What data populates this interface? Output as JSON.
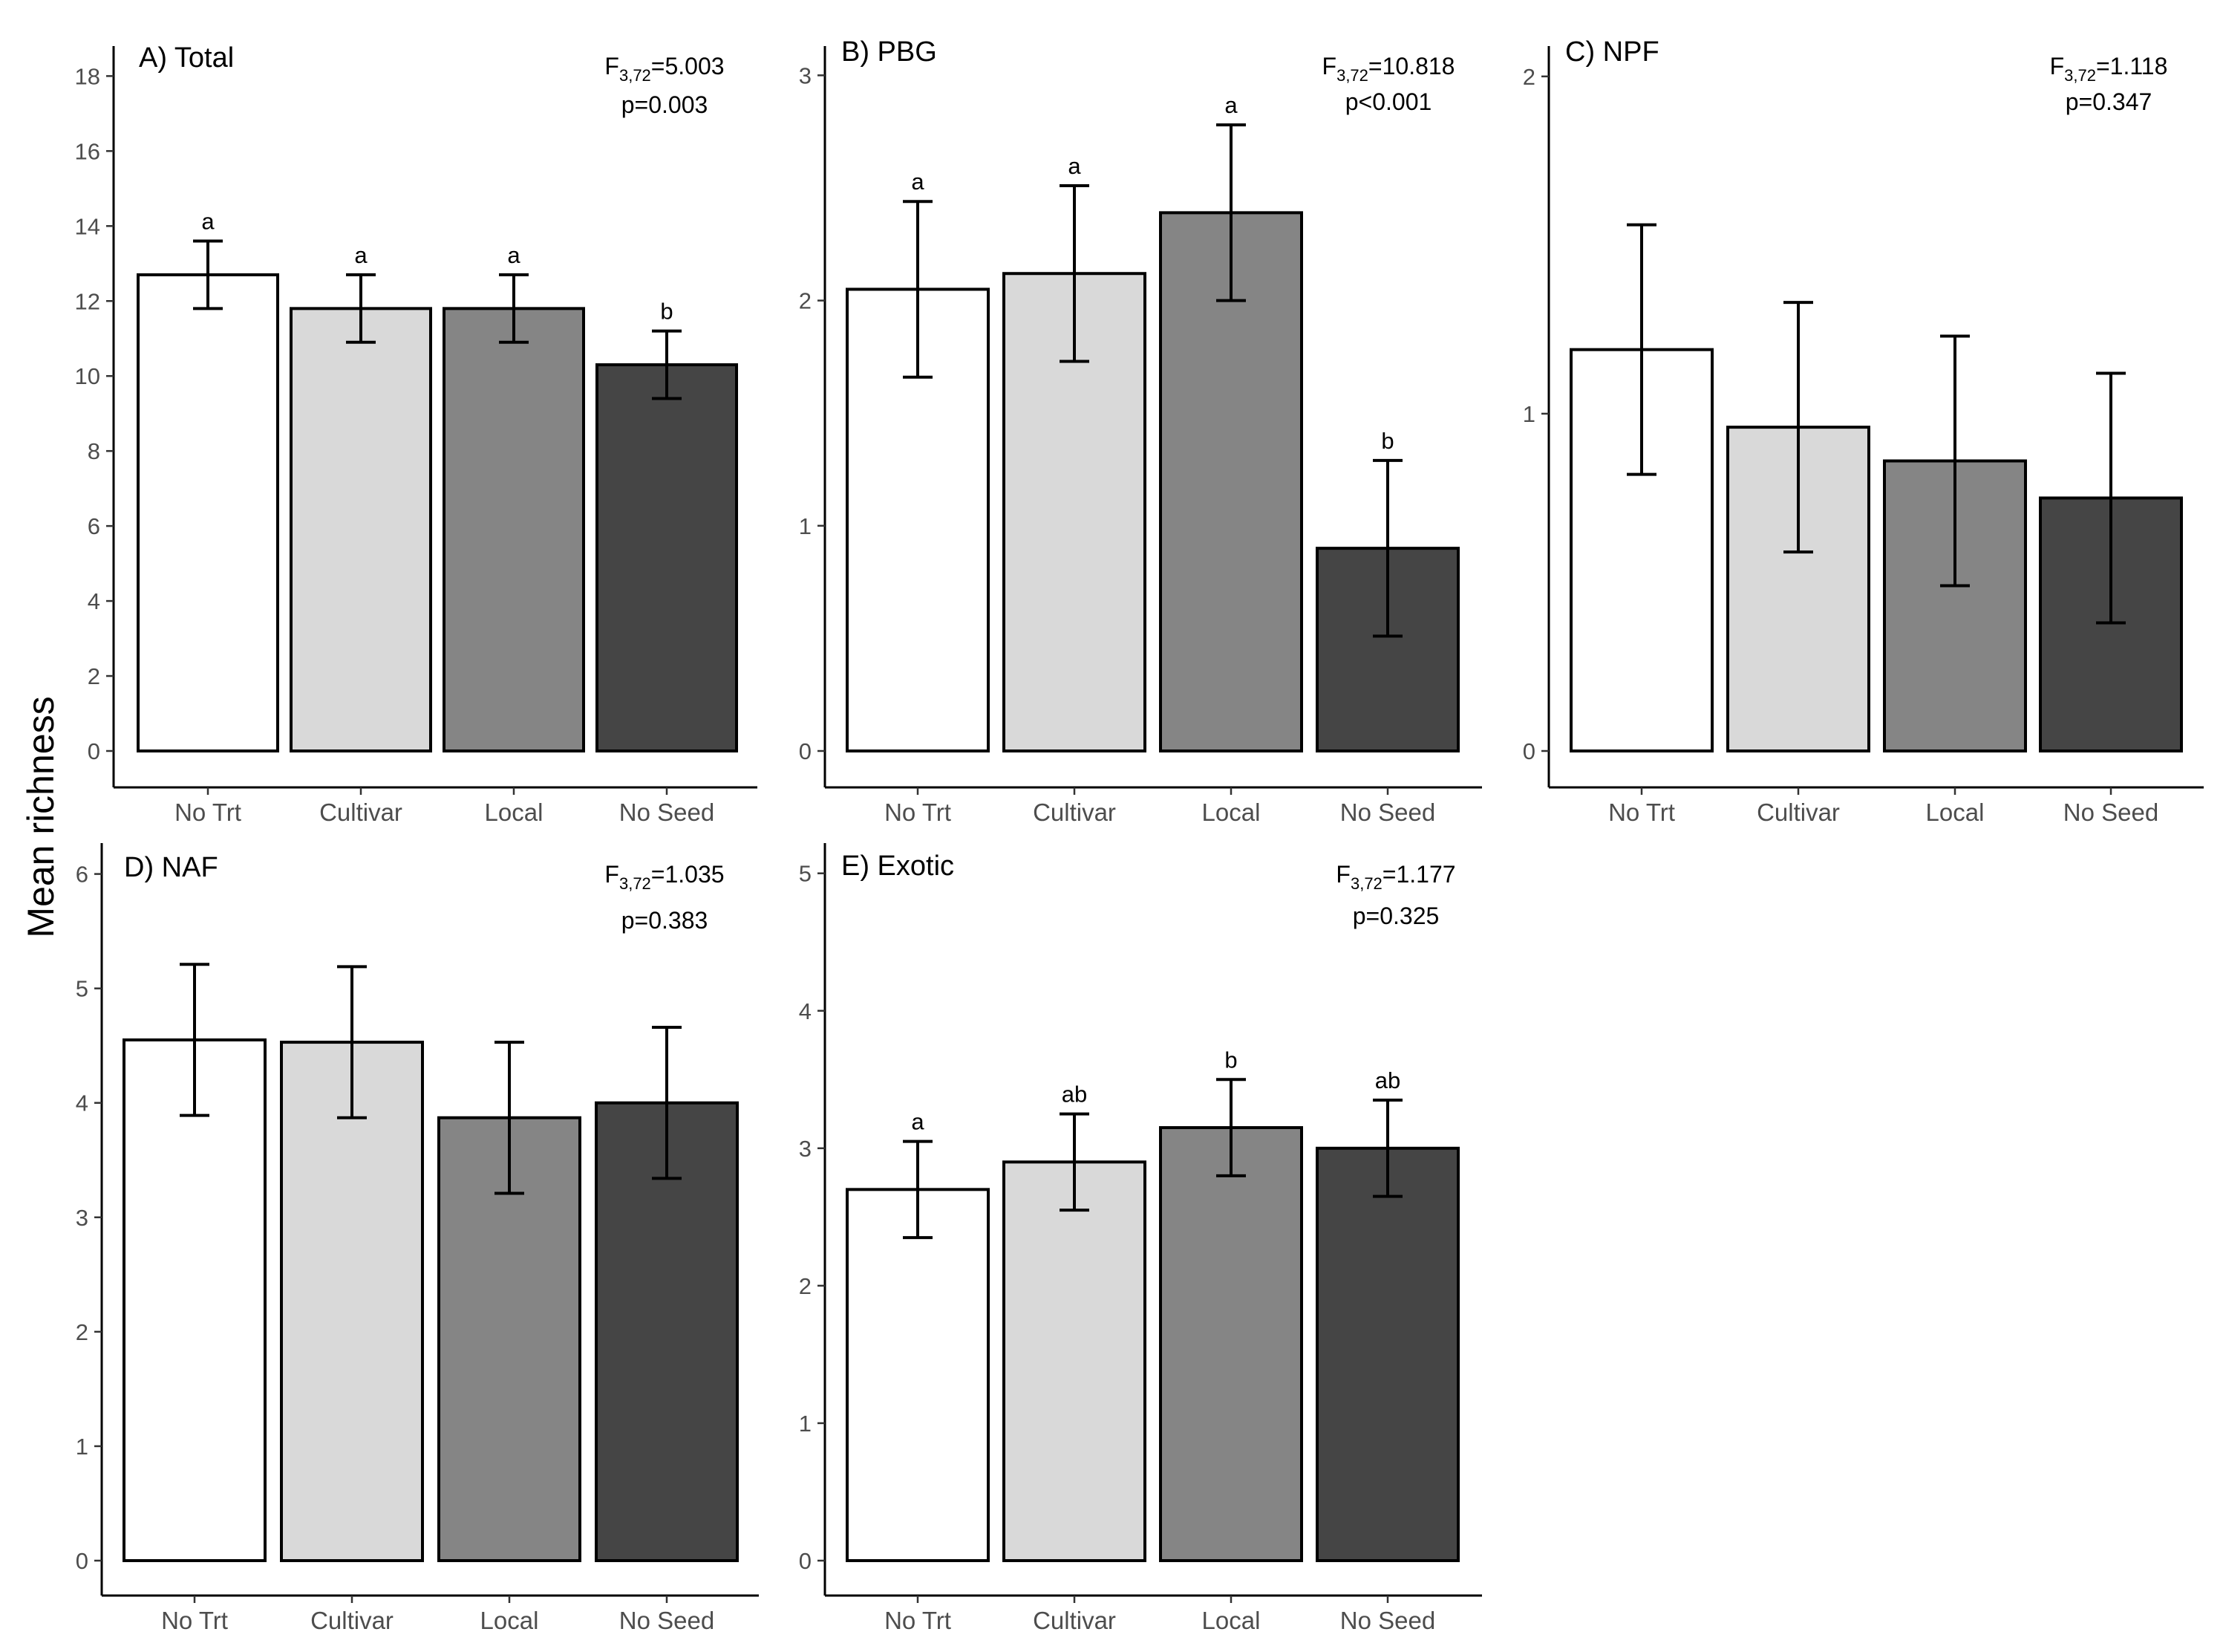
{
  "y_axis_label": "Mean richness",
  "chart_data": [
    {
      "type": "bar",
      "title": "A) Total",
      "stat_f_prefix": "F",
      "stat_f_sub": "3,72",
      "stat_f_value": "=5.003",
      "stat_p": "p=0.003",
      "categories": [
        "No Trt",
        "Cultivar",
        "Local",
        "No Seed"
      ],
      "values": [
        12.7,
        11.8,
        11.8,
        10.3
      ],
      "err_low": [
        11.8,
        10.9,
        10.9,
        9.4
      ],
      "err_high": [
        13.6,
        12.7,
        12.7,
        11.2
      ],
      "letters": [
        "a",
        "a",
        "a",
        "b"
      ],
      "colors": [
        "#ffffff",
        "#d9d9d9",
        "#858585",
        "#454545"
      ],
      "ylim": [
        0,
        18
      ],
      "yticks": [
        0,
        2,
        4,
        6,
        8,
        10,
        12,
        14,
        16,
        18
      ],
      "ylim_top": 18.8,
      "xlabel": "",
      "ylabel": "Mean richness"
    },
    {
      "type": "bar",
      "title": "B) PBG",
      "stat_f_prefix": "F",
      "stat_f_sub": "3,72",
      "stat_f_value": "=10.818",
      "stat_p": "p<0.001",
      "categories": [
        "No Trt",
        "Cultivar",
        "Local",
        "No Seed"
      ],
      "values": [
        2.05,
        2.12,
        2.39,
        0.9
      ],
      "err_low": [
        1.66,
        1.73,
        2.0,
        0.51
      ],
      "err_high": [
        2.44,
        2.51,
        2.78,
        1.29
      ],
      "letters": [
        "a",
        "a",
        "a",
        "b"
      ],
      "colors": [
        "#ffffff",
        "#d9d9d9",
        "#858585",
        "#454545"
      ],
      "ylim": [
        0,
        3
      ],
      "yticks": [
        0,
        1,
        2,
        3
      ],
      "ylim_top": 3.13,
      "xlabel": "",
      "ylabel": "Mean richness"
    },
    {
      "type": "bar",
      "title": "C) NPF",
      "stat_f_prefix": "F",
      "stat_f_sub": "3,72",
      "stat_f_value": "=1.118",
      "stat_p": "p=0.347",
      "categories": [
        "No Trt",
        "Cultivar",
        "Local",
        "No Seed"
      ],
      "values": [
        1.19,
        0.96,
        0.86,
        0.75
      ],
      "err_low": [
        0.82,
        0.59,
        0.49,
        0.38
      ],
      "err_high": [
        1.56,
        1.33,
        1.23,
        1.12
      ],
      "letters": [
        "",
        "",
        "",
        ""
      ],
      "colors": [
        "#ffffff",
        "#d9d9d9",
        "#858585",
        "#454545"
      ],
      "ylim": [
        0,
        2
      ],
      "yticks": [
        0,
        1,
        2
      ],
      "ylim_top": 2.09,
      "xlabel": "",
      "ylabel": "Mean richness"
    },
    {
      "type": "bar",
      "title": "D) NAF",
      "stat_f_prefix": "F",
      "stat_f_sub": "3,72",
      "stat_f_value": "=1.035",
      "stat_p": "p=0.383",
      "categories": [
        "No Trt",
        "Cultivar",
        "Local",
        "No Seed"
      ],
      "values": [
        4.55,
        4.53,
        3.87,
        4.0
      ],
      "err_low": [
        3.89,
        3.87,
        3.21,
        3.34
      ],
      "err_high": [
        5.21,
        5.19,
        4.53,
        4.66
      ],
      "letters": [
        "",
        "",
        "",
        ""
      ],
      "colors": [
        "#ffffff",
        "#d9d9d9",
        "#858585",
        "#454545"
      ],
      "ylim": [
        0,
        6
      ],
      "yticks": [
        0,
        1,
        2,
        3,
        4,
        5,
        6
      ],
      "ylim_top": 6.27,
      "xlabel": "",
      "ylabel": "Mean richness"
    },
    {
      "type": "bar",
      "title": "E) Exotic",
      "stat_f_prefix": "F",
      "stat_f_sub": "3,72",
      "stat_f_value": "=1.177",
      "stat_p": "p=0.325",
      "categories": [
        "No Trt",
        "Cultivar",
        "Local",
        "No Seed"
      ],
      "values": [
        2.7,
        2.9,
        3.15,
        3.0
      ],
      "err_low": [
        2.35,
        2.55,
        2.8,
        2.65
      ],
      "err_high": [
        3.05,
        3.25,
        3.5,
        3.35
      ],
      "letters": [
        "a",
        "ab",
        "b",
        "ab"
      ],
      "colors": [
        "#ffffff",
        "#d9d9d9",
        "#858585",
        "#454545"
      ],
      "ylim": [
        0,
        5
      ],
      "yticks": [
        0,
        1,
        2,
        3,
        4,
        5
      ],
      "ylim_top": 5.22,
      "xlabel": "",
      "ylabel": "Mean richness"
    }
  ]
}
